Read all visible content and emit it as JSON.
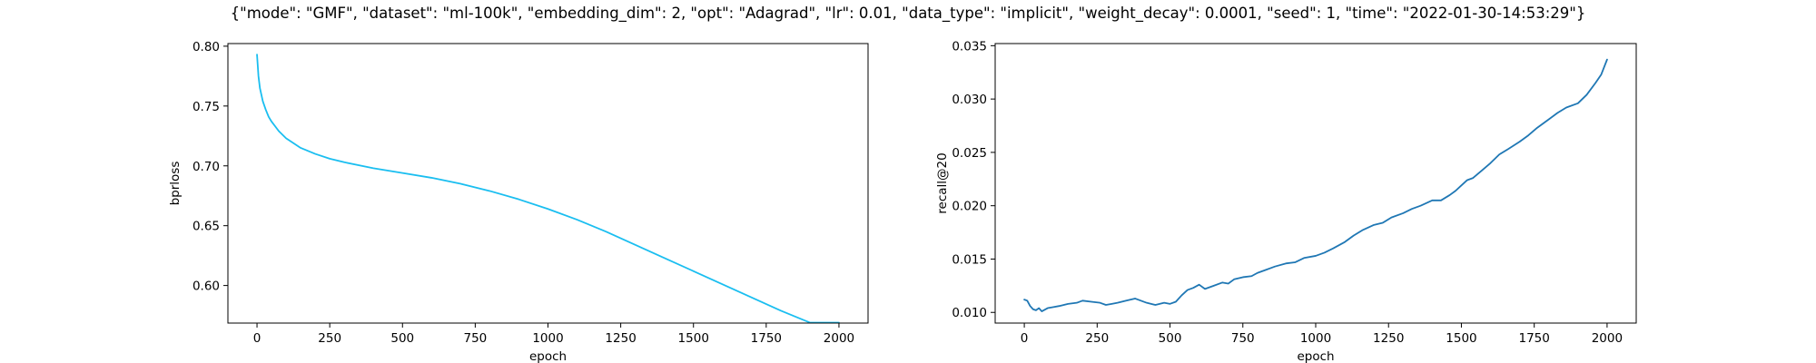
{
  "figure": {
    "suptitle": "{\"mode\": \"GMF\", \"dataset\": \"ml-100k\", \"embedding_dim\": 2, \"opt\": \"Adagrad\", \"lr\": 0.01, \"data_type\": \"implicit\", \"weight_decay\": 0.0001, \"seed\": 1, \"time\": \"2022-01-30-14:53:29\"}"
  },
  "chart_data": [
    {
      "type": "line",
      "title": "",
      "xlabel": "epoch",
      "ylabel": "bprloss",
      "xlim": [
        -100,
        2100
      ],
      "ylim": [
        0.5686,
        0.8022
      ],
      "xticks": [
        0,
        250,
        500,
        750,
        1000,
        1250,
        1500,
        1750,
        2000
      ],
      "yticks": [
        0.6,
        0.65,
        0.7,
        0.75,
        0.8
      ],
      "ytick_labels": [
        "0.60",
        "0.65",
        "0.70",
        "0.75",
        "0.80"
      ],
      "grid": false,
      "color": "#1ABEF0",
      "series": [
        {
          "x": [
            0,
            5,
            10,
            20,
            30,
            40,
            50,
            75,
            100,
            150,
            200,
            250,
            300,
            400,
            500,
            600,
            700,
            800,
            900,
            1000,
            1100,
            1200,
            1300,
            1400,
            1500,
            1600,
            1700,
            1800,
            1900,
            2000
          ],
          "values": [
            0.793,
            0.775,
            0.765,
            0.754,
            0.747,
            0.741,
            0.737,
            0.729,
            0.723,
            0.715,
            0.71,
            0.706,
            0.703,
            0.698,
            0.694,
            0.69,
            0.685,
            0.679,
            0.672,
            0.664,
            0.655,
            0.645,
            0.634,
            0.623,
            0.612,
            0.601,
            0.59,
            0.579,
            0.569,
            0.569
          ]
        }
      ]
    },
    {
      "type": "line",
      "title": "",
      "xlabel": "epoch",
      "ylabel": "recall@20",
      "xlim": [
        -100,
        2100
      ],
      "ylim": [
        0.009,
        0.0352
      ],
      "xticks": [
        0,
        250,
        500,
        750,
        1000,
        1250,
        1500,
        1750,
        2000
      ],
      "yticks": [
        0.01,
        0.015,
        0.02,
        0.025,
        0.03,
        0.035
      ],
      "ytick_labels": [
        "0.010",
        "0.015",
        "0.020",
        "0.025",
        "0.030",
        "0.035"
      ],
      "grid": false,
      "color": "#1F77B4",
      "series": [
        {
          "x": [
            0,
            10,
            20,
            30,
            40,
            50,
            60,
            80,
            100,
            120,
            150,
            180,
            200,
            230,
            260,
            280,
            300,
            320,
            350,
            380,
            400,
            420,
            450,
            480,
            500,
            520,
            540,
            560,
            580,
            600,
            620,
            650,
            680,
            700,
            720,
            750,
            780,
            800,
            830,
            860,
            900,
            930,
            960,
            1000,
            1030,
            1060,
            1100,
            1130,
            1160,
            1200,
            1230,
            1260,
            1300,
            1330,
            1360,
            1400,
            1430,
            1460,
            1480,
            1500,
            1520,
            1540,
            1570,
            1600,
            1630,
            1660,
            1700,
            1730,
            1760,
            1800,
            1830,
            1860,
            1900,
            1930,
            1960,
            1980,
            2000
          ],
          "values": [
            0.0112,
            0.0111,
            0.0106,
            0.0103,
            0.0102,
            0.0104,
            0.0101,
            0.0104,
            0.0105,
            0.0106,
            0.0108,
            0.0109,
            0.0111,
            0.011,
            0.0109,
            0.0107,
            0.0108,
            0.0109,
            0.0111,
            0.0113,
            0.0111,
            0.0109,
            0.0107,
            0.0109,
            0.0108,
            0.011,
            0.0116,
            0.0121,
            0.0123,
            0.0126,
            0.0122,
            0.0125,
            0.0128,
            0.0127,
            0.0131,
            0.0133,
            0.0134,
            0.0137,
            0.014,
            0.0143,
            0.0146,
            0.0147,
            0.0151,
            0.0153,
            0.0156,
            0.016,
            0.0166,
            0.0172,
            0.0177,
            0.0182,
            0.0184,
            0.0189,
            0.0193,
            0.0197,
            0.02,
            0.0205,
            0.0205,
            0.021,
            0.0214,
            0.0219,
            0.0224,
            0.0226,
            0.0233,
            0.024,
            0.0248,
            0.0253,
            0.026,
            0.0266,
            0.0273,
            0.0281,
            0.0287,
            0.0292,
            0.0296,
            0.0304,
            0.0315,
            0.0323,
            0.0337
          ]
        }
      ]
    }
  ]
}
